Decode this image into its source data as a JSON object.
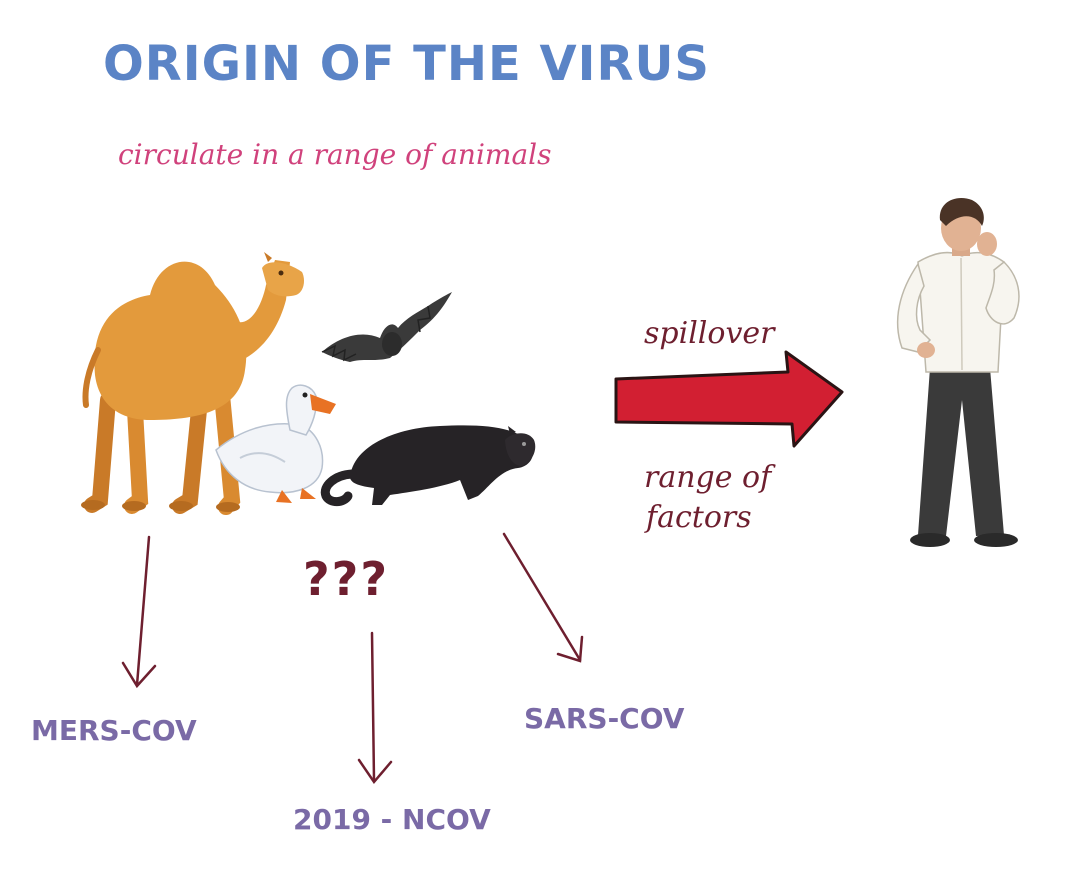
{
  "title": "ORIGIN OF THE VIRUS",
  "subtitle": "circulate in a range of animals",
  "arrow_labels": {
    "spillover": "spillover",
    "range_line1": "range of",
    "range_line2": "factors"
  },
  "unknown": "???",
  "viruses": {
    "mers": "MERS-COV",
    "sars": "SARS-COV",
    "ncov": "2019 - NCOV"
  },
  "colors": {
    "title": "#5b84c6",
    "subtitle": "#d0427c",
    "handwriting": "#6e1f2f",
    "virus_label": "#7a6aa6",
    "spillover_arrow": "#d21f32"
  }
}
